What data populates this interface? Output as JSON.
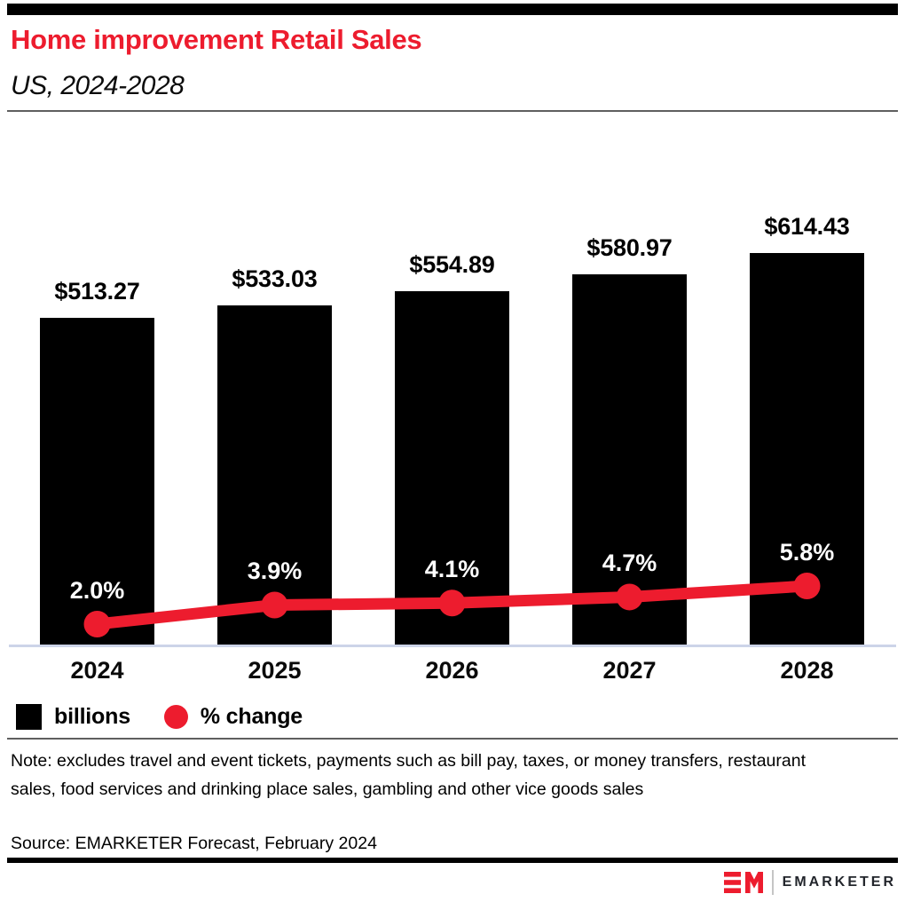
{
  "page": {
    "background": "#ffffff",
    "accent_red": "#ed1c2e"
  },
  "header": {
    "title": "Home improvement Retail Sales",
    "subtitle": "US, 2024-2028"
  },
  "chart_data": {
    "type": "bar",
    "combo": "bar+line",
    "categories": [
      "2024",
      "2025",
      "2026",
      "2027",
      "2028"
    ],
    "series": [
      {
        "name": "billions",
        "type": "bar",
        "color": "#000000",
        "values": [
          513.27,
          533.03,
          554.89,
          580.97,
          614.43
        ],
        "labels": [
          "$513.27",
          "$533.03",
          "$554.89",
          "$580.97",
          "$614.43"
        ]
      },
      {
        "name": "% change",
        "type": "line",
        "color": "#ed1c2e",
        "values": [
          2.0,
          3.9,
          4.1,
          4.7,
          5.8
        ],
        "labels": [
          "2.0%",
          "3.9%",
          "4.1%",
          "4.7%",
          "5.8%"
        ]
      }
    ],
    "bar_axis_min": 0,
    "grid": false,
    "legend_position": "bottom-left"
  },
  "legend": {
    "items": [
      {
        "label": "billions",
        "swatch": "square",
        "color": "#000000"
      },
      {
        "label": "% change",
        "swatch": "circle",
        "color": "#ed1c2e"
      }
    ]
  },
  "footnote": {
    "note": "Note: excludes travel and event tickets, payments such as bill pay, taxes, or money transfers, restaurant sales, food services and drinking place sales, gambling and other vice goods sales",
    "source": "Source: EMARKETER Forecast, February 2024"
  },
  "brand": {
    "logo_text": "EMARKETER"
  }
}
